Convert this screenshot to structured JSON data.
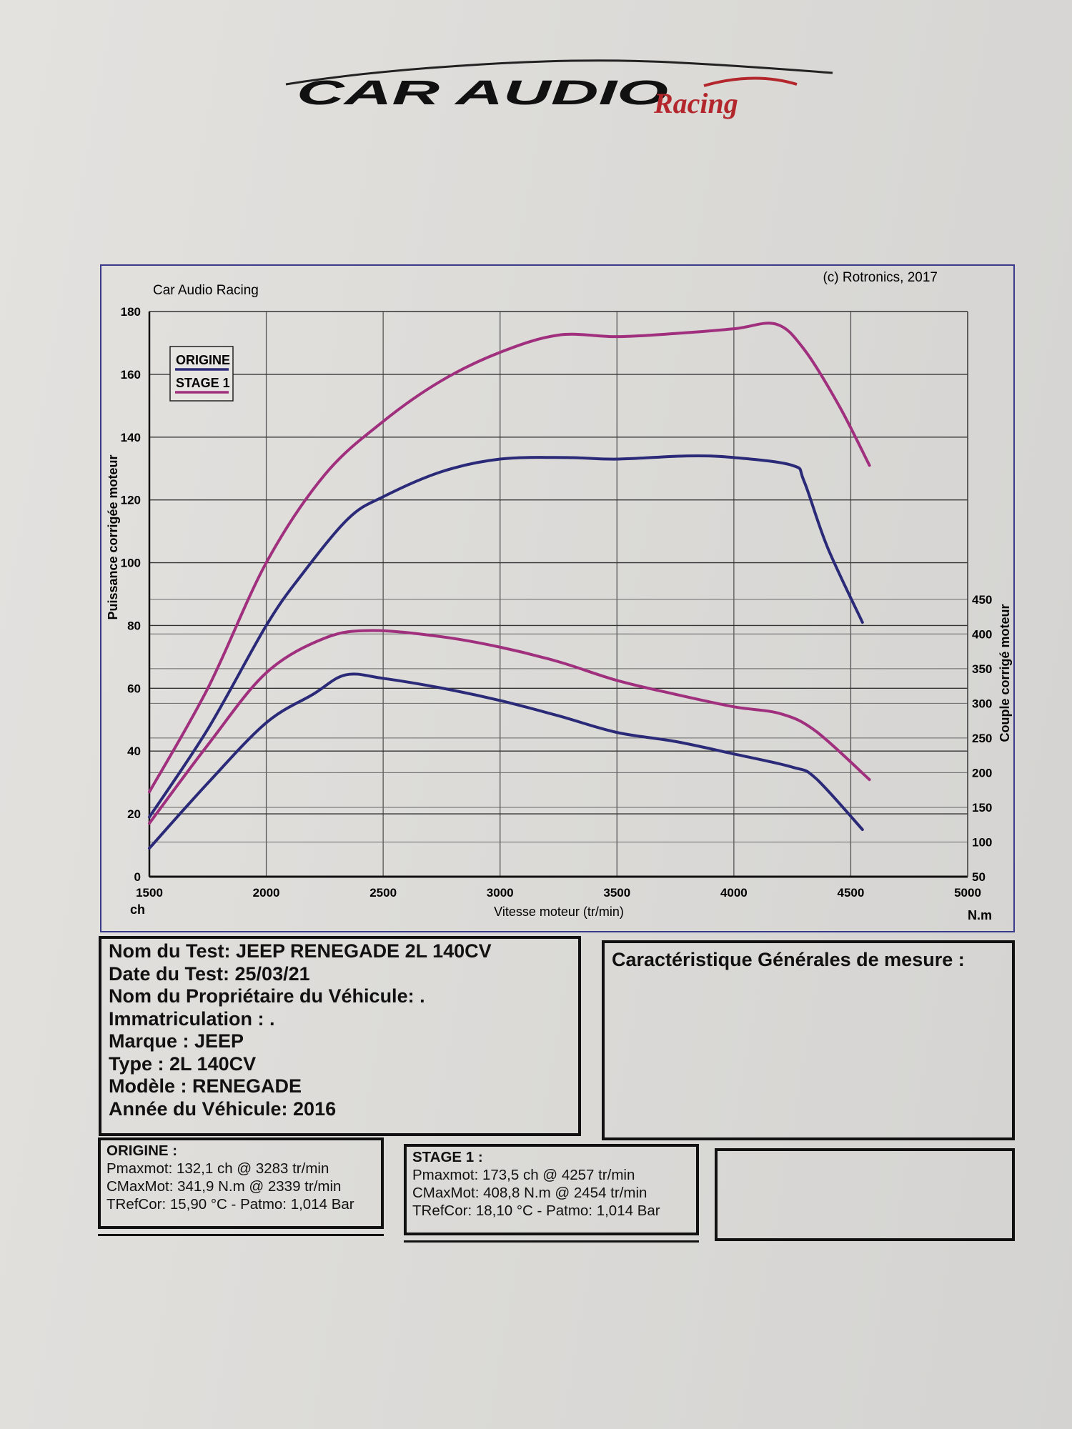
{
  "logo": {
    "main_text": "CAR AUDIO",
    "script_text": "Racing"
  },
  "chart_data": {
    "type": "line",
    "header_left": "Car Audio Racing",
    "header_right": "(c) Rotronics, 2017",
    "xlabel": "Vitesse moteur (tr/min)",
    "ylabel": "Puissance corrigée moteur",
    "y2label": "Couple corrigé moteur",
    "x_unit_left": "ch",
    "x_unit_right": "N.m",
    "xlim": [
      1500,
      5000
    ],
    "xticks": [
      1500,
      2000,
      2500,
      3000,
      3500,
      4000,
      4500,
      5000
    ],
    "ylim": [
      0,
      180
    ],
    "yticks": [
      0,
      20,
      40,
      60,
      80,
      100,
      120,
      140,
      160,
      180
    ],
    "y2lim": [
      50,
      865
    ],
    "y2ticks": [
      50,
      100,
      150,
      200,
      250,
      300,
      350,
      400,
      450
    ],
    "grid": true,
    "legend_position": "top-left",
    "colors": {
      "ORIGINE": "#2a2a78",
      "STAGE 1": "#a0307e"
    },
    "series": [
      {
        "name": "ORIGINE",
        "quantity": "power",
        "axis": "left",
        "x": [
          1500,
          1750,
          2000,
          2150,
          2350,
          2500,
          2750,
          3000,
          3283,
          3500,
          3800,
          4000,
          4250,
          4300,
          4400,
          4550
        ],
        "y": [
          19,
          47,
          80,
          96,
          114,
          121,
          129,
          133,
          133.5,
          133,
          134,
          133.5,
          131,
          126,
          105,
          81
        ]
      },
      {
        "name": "STAGE 1",
        "quantity": "power",
        "axis": "left",
        "x": [
          1500,
          1750,
          2000,
          2250,
          2500,
          2750,
          3000,
          3250,
          3500,
          3750,
          4000,
          4180,
          4300,
          4450,
          4580
        ],
        "y": [
          27,
          60,
          100,
          128,
          145,
          158,
          167,
          172.5,
          172,
          173,
          174.5,
          176,
          168,
          150,
          131
        ]
      },
      {
        "name": "ORIGINE",
        "quantity": "torque",
        "axis": "right",
        "x": [
          1500,
          1750,
          2000,
          2200,
          2339,
          2500,
          2750,
          3000,
          3250,
          3500,
          3750,
          4000,
          4250,
          4350,
          4550
        ],
        "y": [
          91,
          185,
          272,
          313,
          341,
          336,
          322,
          304,
          282,
          258,
          245,
          227,
          208,
          192,
          118
        ]
      },
      {
        "name": "STAGE 1",
        "quantity": "torque",
        "axis": "right",
        "x": [
          1500,
          1750,
          2000,
          2250,
          2454,
          2750,
          3000,
          3250,
          3500,
          3750,
          4000,
          4200,
          4350,
          4580
        ],
        "y": [
          127,
          240,
          344,
          394,
          405,
          396,
          381,
          360,
          333,
          313,
          295,
          285,
          260,
          190
        ]
      }
    ],
    "legend": [
      "ORIGINE",
      "STAGE 1"
    ]
  },
  "test_info": {
    "lines": [
      "Nom du Test: JEEP RENEGADE 2L 140CV",
      "Date du Test: 25/03/21",
      "Nom du Propriétaire du Véhicule: .",
      "Immatriculation  : .",
      "Marque  : JEEP",
      "Type  : 2L 140CV",
      "Modèle  : RENEGADE",
      "Année du Véhicule: 2016"
    ]
  },
  "general": {
    "title": "Caractéristique Générales de mesure :"
  },
  "origine": {
    "title": "ORIGINE :",
    "pmax": "Pmaxmot: 132,1 ch @ 3283 tr/min",
    "cmax": "CMaxMot: 341,9 N.m @ 2339 tr/min",
    "tref": "TRefCor: 15,90 °C - Patmo: 1,014 Bar"
  },
  "stage1": {
    "title": "STAGE 1 :",
    "pmax": "Pmaxmot: 173,5 ch @ 4257 tr/min",
    "cmax": "CMaxMot: 408,8 N.m @ 2454 tr/min",
    "tref": "TRefCor: 18,10 °C - Patmo: 1,014 Bar"
  }
}
